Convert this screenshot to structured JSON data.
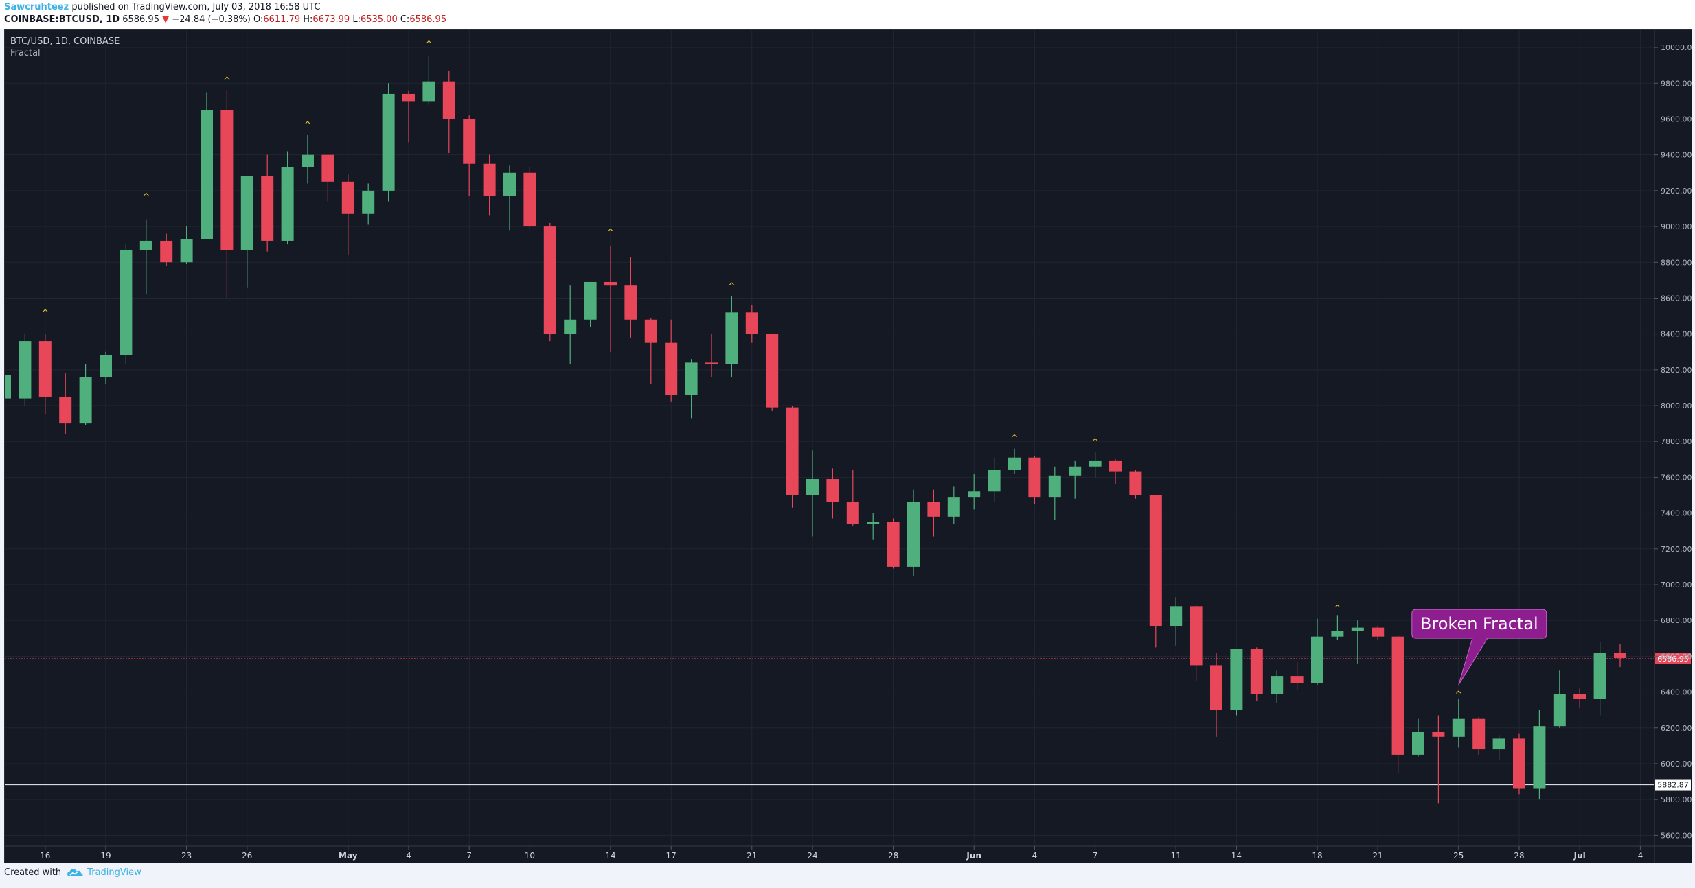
{
  "header": {
    "author": "Sawcruhteez",
    "published_text": "published on TradingView.com, July 03, 2018 16:58 UTC",
    "symbol": "COINBASE:BTCUSD, 1D",
    "last": "6586.95",
    "change": "−24.84 (−0.38%)",
    "o_label": "O:",
    "o_value": "6611.79",
    "h_label": "H:",
    "h_value": "6673.99",
    "l_label": "L:",
    "l_value": "6535.00",
    "c_label": "C:",
    "c_value": "6586.95"
  },
  "legend": {
    "symbol_line": "BTC/USD, 1D, COINBASE",
    "indicator": "Fractal"
  },
  "footer": {
    "created_with": "Created with",
    "brand": "TradingView"
  },
  "colors": {
    "background": "#151924",
    "up": "#4fb07e",
    "down": "#e8475a",
    "fractal": "#e3c324",
    "callout": "#8e1d8f",
    "price_label": "#e8475a"
  },
  "chart_data": {
    "type": "candlestick",
    "ylim": [
      5540,
      10100
    ],
    "y_ticks": [
      "5600.00",
      "5800.00",
      "6000.00",
      "6200.00",
      "6400.00",
      "6600.00",
      "6800.00",
      "7000.00",
      "7200.00",
      "7400.00",
      "7600.00",
      "7800.00",
      "8000.00",
      "8200.00",
      "8400.00",
      "8600.00",
      "8800.00",
      "9000.00",
      "9200.00",
      "9400.00",
      "9600.00",
      "9800.00",
      "10000.00"
    ],
    "x_tick_labels": [
      {
        "i": 2,
        "label": "16"
      },
      {
        "i": 5,
        "label": "19"
      },
      {
        "i": 9,
        "label": "23"
      },
      {
        "i": 12,
        "label": "26"
      },
      {
        "i": 17,
        "label": "May"
      },
      {
        "i": 20,
        "label": "4"
      },
      {
        "i": 23,
        "label": "7"
      },
      {
        "i": 26,
        "label": "10"
      },
      {
        "i": 30,
        "label": "14"
      },
      {
        "i": 33,
        "label": "17"
      },
      {
        "i": 37,
        "label": "21"
      },
      {
        "i": 40,
        "label": "24"
      },
      {
        "i": 44,
        "label": "28"
      },
      {
        "i": 48,
        "label": "Jun"
      },
      {
        "i": 51,
        "label": "4"
      },
      {
        "i": 54,
        "label": "7"
      },
      {
        "i": 58,
        "label": "11"
      },
      {
        "i": 61,
        "label": "14"
      },
      {
        "i": 65,
        "label": "18"
      },
      {
        "i": 68,
        "label": "21"
      },
      {
        "i": 72,
        "label": "25"
      },
      {
        "i": 75,
        "label": "28"
      },
      {
        "i": 78,
        "label": "Jul"
      },
      {
        "i": 81,
        "label": "4"
      }
    ],
    "current_price": 6586.95,
    "current_price_label": "6586.95",
    "horizontal_line": 5882.87,
    "horizontal_line_label": "5882.87",
    "fractal_marker": "^",
    "fractals_up": [
      {
        "i": 2,
        "value": 8500
      },
      {
        "i": 7,
        "value": 9150
      },
      {
        "i": 11,
        "value": 9800
      },
      {
        "i": 15,
        "value": 9550
      },
      {
        "i": 21,
        "value": 10000
      },
      {
        "i": 30,
        "value": 8950
      },
      {
        "i": 36,
        "value": 8650
      },
      {
        "i": 50,
        "value": 7800
      },
      {
        "i": 54,
        "value": 7780
      },
      {
        "i": 66,
        "value": 6850
      },
      {
        "i": 72,
        "value": 6370
      }
    ],
    "annotation": {
      "text": "Broken Fractal",
      "target_i": 72,
      "target_value": 6440
    },
    "candles": [
      {
        "o": 8040,
        "h": 8380,
        "l": 7850,
        "c": 8170
      },
      {
        "o": 8040,
        "h": 8400,
        "l": 8000,
        "c": 8360
      },
      {
        "o": 8360,
        "h": 8400,
        "l": 7950,
        "c": 8050
      },
      {
        "o": 8050,
        "h": 8180,
        "l": 7840,
        "c": 7900
      },
      {
        "o": 7900,
        "h": 8230,
        "l": 7890,
        "c": 8160
      },
      {
        "o": 8160,
        "h": 8300,
        "l": 8120,
        "c": 8280
      },
      {
        "o": 8280,
        "h": 8900,
        "l": 8230,
        "c": 8870
      },
      {
        "o": 8870,
        "h": 9040,
        "l": 8620,
        "c": 8920
      },
      {
        "o": 8920,
        "h": 8960,
        "l": 8780,
        "c": 8800
      },
      {
        "o": 8800,
        "h": 9000,
        "l": 8790,
        "c": 8930
      },
      {
        "o": 8930,
        "h": 9750,
        "l": 8930,
        "c": 9650
      },
      {
        "o": 9650,
        "h": 9760,
        "l": 8600,
        "c": 8870
      },
      {
        "o": 8870,
        "h": 9280,
        "l": 8660,
        "c": 9280
      },
      {
        "o": 9280,
        "h": 9400,
        "l": 8860,
        "c": 8920
      },
      {
        "o": 8920,
        "h": 9420,
        "l": 8900,
        "c": 9330
      },
      {
        "o": 9330,
        "h": 9510,
        "l": 9240,
        "c": 9400
      },
      {
        "o": 9400,
        "h": 9400,
        "l": 9140,
        "c": 9250
      },
      {
        "o": 9250,
        "h": 9290,
        "l": 8840,
        "c": 9070
      },
      {
        "o": 9070,
        "h": 9240,
        "l": 9010,
        "c": 9200
      },
      {
        "o": 9200,
        "h": 9800,
        "l": 9140,
        "c": 9740
      },
      {
        "o": 9740,
        "h": 9760,
        "l": 9470,
        "c": 9700
      },
      {
        "o": 9700,
        "h": 9950,
        "l": 9680,
        "c": 9810
      },
      {
        "o": 9810,
        "h": 9870,
        "l": 9410,
        "c": 9600
      },
      {
        "o": 9600,
        "h": 9620,
        "l": 9170,
        "c": 9350
      },
      {
        "o": 9350,
        "h": 9400,
        "l": 9060,
        "c": 9170
      },
      {
        "o": 9170,
        "h": 9340,
        "l": 8980,
        "c": 9300
      },
      {
        "o": 9300,
        "h": 9330,
        "l": 8990,
        "c": 9000
      },
      {
        "o": 9000,
        "h": 9020,
        "l": 8360,
        "c": 8400
      },
      {
        "o": 8400,
        "h": 8670,
        "l": 8230,
        "c": 8480
      },
      {
        "o": 8480,
        "h": 8690,
        "l": 8440,
        "c": 8690
      },
      {
        "o": 8690,
        "h": 8890,
        "l": 8300,
        "c": 8670
      },
      {
        "o": 8670,
        "h": 8830,
        "l": 8380,
        "c": 8480
      },
      {
        "o": 8480,
        "h": 8490,
        "l": 8120,
        "c": 8350
      },
      {
        "o": 8350,
        "h": 8480,
        "l": 8020,
        "c": 8060
      },
      {
        "o": 8060,
        "h": 8260,
        "l": 7930,
        "c": 8240
      },
      {
        "o": 8240,
        "h": 8400,
        "l": 8160,
        "c": 8230
      },
      {
        "o": 8230,
        "h": 8610,
        "l": 8160,
        "c": 8520
      },
      {
        "o": 8520,
        "h": 8560,
        "l": 8350,
        "c": 8400
      },
      {
        "o": 8400,
        "h": 8400,
        "l": 7970,
        "c": 7990
      },
      {
        "o": 7990,
        "h": 8000,
        "l": 7430,
        "c": 7500
      },
      {
        "o": 7500,
        "h": 7750,
        "l": 7270,
        "c": 7590
      },
      {
        "o": 7590,
        "h": 7650,
        "l": 7370,
        "c": 7460
      },
      {
        "o": 7460,
        "h": 7640,
        "l": 7330,
        "c": 7340
      },
      {
        "o": 7340,
        "h": 7400,
        "l": 7250,
        "c": 7350
      },
      {
        "o": 7350,
        "h": 7370,
        "l": 7090,
        "c": 7100
      },
      {
        "o": 7100,
        "h": 7530,
        "l": 7050,
        "c": 7460
      },
      {
        "o": 7460,
        "h": 7530,
        "l": 7270,
        "c": 7380
      },
      {
        "o": 7380,
        "h": 7550,
        "l": 7340,
        "c": 7490
      },
      {
        "o": 7490,
        "h": 7620,
        "l": 7420,
        "c": 7520
      },
      {
        "o": 7520,
        "h": 7710,
        "l": 7460,
        "c": 7640
      },
      {
        "o": 7640,
        "h": 7760,
        "l": 7620,
        "c": 7710
      },
      {
        "o": 7710,
        "h": 7720,
        "l": 7450,
        "c": 7490
      },
      {
        "o": 7490,
        "h": 7660,
        "l": 7360,
        "c": 7610
      },
      {
        "o": 7610,
        "h": 7690,
        "l": 7480,
        "c": 7660
      },
      {
        "o": 7660,
        "h": 7740,
        "l": 7600,
        "c": 7690
      },
      {
        "o": 7690,
        "h": 7700,
        "l": 7560,
        "c": 7630
      },
      {
        "o": 7630,
        "h": 7640,
        "l": 7480,
        "c": 7500
      },
      {
        "o": 7500,
        "h": 7500,
        "l": 6650,
        "c": 6770
      },
      {
        "o": 6770,
        "h": 6930,
        "l": 6660,
        "c": 6880
      },
      {
        "o": 6880,
        "h": 6890,
        "l": 6460,
        "c": 6550
      },
      {
        "o": 6550,
        "h": 6620,
        "l": 6150,
        "c": 6300
      },
      {
        "o": 6300,
        "h": 6640,
        "l": 6270,
        "c": 6640
      },
      {
        "o": 6640,
        "h": 6650,
        "l": 6350,
        "c": 6390
      },
      {
        "o": 6390,
        "h": 6520,
        "l": 6340,
        "c": 6490
      },
      {
        "o": 6490,
        "h": 6570,
        "l": 6410,
        "c": 6450
      },
      {
        "o": 6450,
        "h": 6810,
        "l": 6440,
        "c": 6710
      },
      {
        "o": 6710,
        "h": 6830,
        "l": 6690,
        "c": 6740
      },
      {
        "o": 6740,
        "h": 6800,
        "l": 6560,
        "c": 6760
      },
      {
        "o": 6760,
        "h": 6770,
        "l": 6690,
        "c": 6710
      },
      {
        "o": 6710,
        "h": 6720,
        "l": 5950,
        "c": 6050
      },
      {
        "o": 6050,
        "h": 6250,
        "l": 6040,
        "c": 6180
      },
      {
        "o": 6180,
        "h": 6270,
        "l": 5780,
        "c": 6150
      },
      {
        "o": 6150,
        "h": 6360,
        "l": 6090,
        "c": 6250
      },
      {
        "o": 6250,
        "h": 6260,
        "l": 6050,
        "c": 6080
      },
      {
        "o": 6080,
        "h": 6160,
        "l": 6020,
        "c": 6140
      },
      {
        "o": 6140,
        "h": 6170,
        "l": 5830,
        "c": 5860
      },
      {
        "o": 5860,
        "h": 6300,
        "l": 5800,
        "c": 6210
      },
      {
        "o": 6210,
        "h": 6520,
        "l": 6200,
        "c": 6390
      },
      {
        "o": 6390,
        "h": 6420,
        "l": 6310,
        "c": 6360
      },
      {
        "o": 6360,
        "h": 6680,
        "l": 6270,
        "c": 6620
      },
      {
        "o": 6620,
        "h": 6670,
        "l": 6540,
        "c": 6590
      }
    ]
  }
}
